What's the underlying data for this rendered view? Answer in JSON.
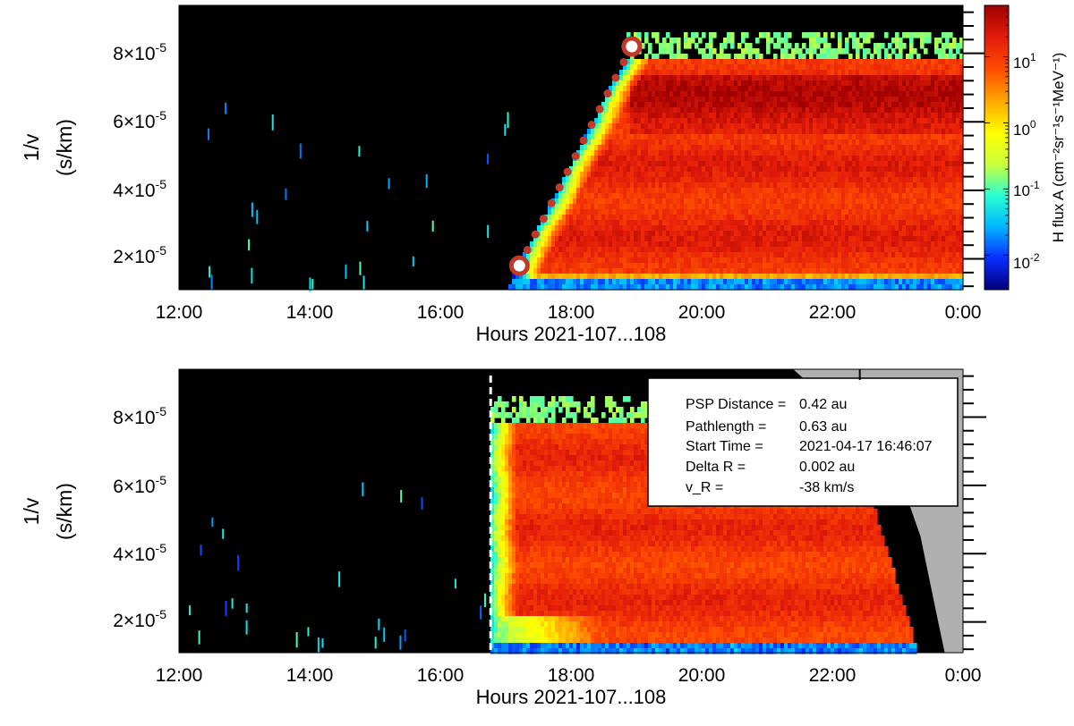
{
  "chart_data": [
    {
      "type": "heatmap",
      "panel": "top",
      "title": "",
      "xlabel": "Hours 2021-107...108",
      "ylabel_line1": "1/v",
      "ylabel_line2": "(s/km)",
      "x_range_hours": [
        12,
        24
      ],
      "y_range": [
        1.1e-05,
        9.4e-05
      ],
      "x_ticks": [
        12,
        14,
        16,
        18,
        20,
        22,
        24
      ],
      "x_tick_labels": [
        "12:00",
        "14:00",
        "16:00",
        "18:00",
        "20:00",
        "22:00",
        "0:00"
      ],
      "y_ticks": [
        2e-05,
        4e-05,
        6e-05,
        8e-05
      ],
      "y_tick_labels": [
        {
          "m": "2",
          "e": "-5"
        },
        {
          "m": "4",
          "e": "-5"
        },
        {
          "m": "6",
          "e": "-5"
        },
        {
          "m": "8",
          "e": "-5"
        }
      ],
      "event_onset_hours": 17.2,
      "velocity_dispersion_line": {
        "points": [
          {
            "t_hours": 17.21,
            "inv_v": 1.8e-05
          },
          {
            "t_hours": 18.93,
            "inv_v": 8.2e-05
          }
        ],
        "color": "#c0392b"
      },
      "background_region": "black"
    },
    {
      "type": "heatmap",
      "panel": "bottom",
      "title": "",
      "xlabel": "Hours 2021-107...108",
      "ylabel_line1": "1/v",
      "ylabel_line2": "(s/km)",
      "x_range_hours": [
        12,
        24
      ],
      "y_range": [
        1.1e-05,
        9.4e-05
      ],
      "x_ticks": [
        12,
        14,
        16,
        18,
        20,
        22,
        24
      ],
      "x_tick_labels": [
        "12:00",
        "14:00",
        "16:00",
        "18:00",
        "20:00",
        "22:00",
        "0:00"
      ],
      "y_ticks": [
        2e-05,
        4e-05,
        6e-05,
        8e-05
      ],
      "y_tick_labels": [
        {
          "m": "2",
          "e": "-5"
        },
        {
          "m": "4",
          "e": "-5"
        },
        {
          "m": "6",
          "e": "-5"
        },
        {
          "m": "8",
          "e": "-5"
        }
      ],
      "start_time_marker_hours": 16.77,
      "info_box": [
        {
          "label": "PSP Distance =",
          "value": "0.42 au"
        },
        {
          "label": "Pathlength    =",
          "value": "0.63 au"
        },
        {
          "label": "Start Time    =",
          "value": "2021-04-17 16:46:07"
        },
        {
          "label": "Delta R       =",
          "value": "0.002 au"
        },
        {
          "label": "v_R           =",
          "value": "-38 km/s"
        }
      ],
      "no_data_color": "#b0b0b0"
    }
  ],
  "colorbar": {
    "label": "H flux A (cm⁻²sr⁻¹s⁻¹MeV⁻¹)",
    "label_main": "H flux A",
    "label_units": "(cm⁻²sr⁻¹s⁻¹MeV⁻¹)",
    "scale": "log",
    "range": [
      0.003,
      60
    ],
    "ticks": [
      0.01,
      0.1,
      1,
      10
    ],
    "tick_labels": [
      {
        "m": "10",
        "e": "-2"
      },
      {
        "m": "10",
        "e": "-1"
      },
      {
        "m": "10",
        "e": "0"
      },
      {
        "m": "10",
        "e": "1"
      }
    ],
    "colors": [
      "#00007a",
      "#0a2dff",
      "#00b4ff",
      "#28ffd2",
      "#c8ff3c",
      "#ffff00",
      "#ffaa00",
      "#ff5000",
      "#e61e0a",
      "#a00000"
    ]
  }
}
